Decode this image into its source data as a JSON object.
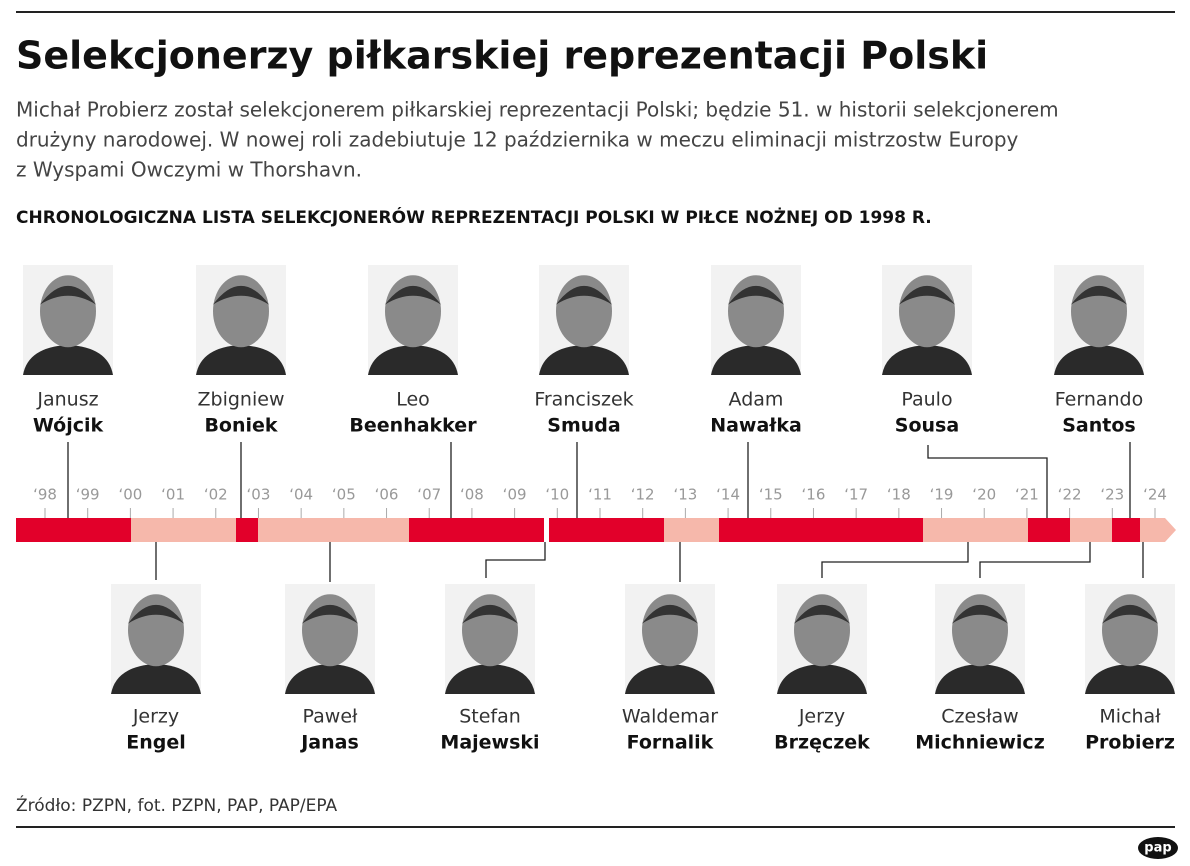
{
  "header": {
    "title": "Selekcjonerzy piłkarskiej reprezentacji Polski",
    "subtitle_lines": [
      "Michał Probierz został selekcjonerem piłkarskiej reprezentacji Polski; będzie 51. w historii selekcjonerem",
      "drużyny narodowej. W nowej roli zadebiutuje 12 października w meczu eliminacji mistrzostw Europy",
      "z Wyspami Owczymi w Thorshavn."
    ]
  },
  "section_title": "CHRONOLOGICZNA LISTA SELEKCJONERÓW REPREZENTACJI POLSKI W PIŁCE NOŻNEJ OD 1998 R.",
  "years": [
    "‘98",
    "‘99",
    "‘00",
    "‘01",
    "‘02",
    "‘03",
    "‘04",
    "‘05",
    "‘06",
    "‘07",
    "‘08",
    "‘09",
    "‘10",
    "‘11",
    "‘12",
    "‘13",
    "‘14",
    "‘15",
    "‘16",
    "‘17",
    "‘18",
    "‘19",
    "‘20",
    "‘21",
    "‘22",
    "‘23",
    "‘24"
  ],
  "coaches_top": [
    {
      "first": "Janusz",
      "last": "Wójcik"
    },
    {
      "first": "Zbigniew",
      "last": "Boniek"
    },
    {
      "first": "Leo",
      "last": "Beenhakker"
    },
    {
      "first": "Franciszek",
      "last": "Smuda"
    },
    {
      "first": "Adam",
      "last": "Nawałka"
    },
    {
      "first": "Paulo",
      "last": "Sousa"
    },
    {
      "first": "Fernando",
      "last": "Santos"
    }
  ],
  "coaches_bottom": [
    {
      "first": "Jerzy",
      "last": "Engel"
    },
    {
      "first": "Paweł",
      "last": "Janas"
    },
    {
      "first": "Stefan",
      "last": "Majewski"
    },
    {
      "first": "Waldemar",
      "last": "Fornalik"
    },
    {
      "first": "Jerzy",
      "last": "Brzęczek"
    },
    {
      "first": "Czesław",
      "last": "Michniewicz"
    },
    {
      "first": "Michał",
      "last": "Probierz"
    }
  ],
  "source": "Źródło: PZPN, fot. PZPN, PAP, PAP/EPA",
  "logo": "pap"
}
